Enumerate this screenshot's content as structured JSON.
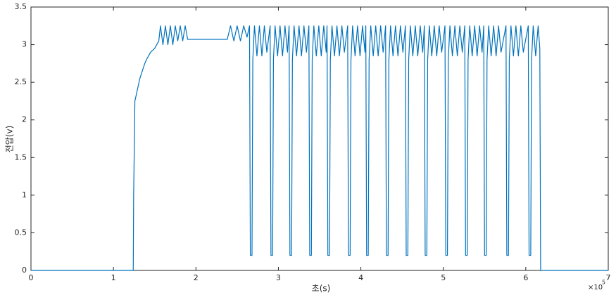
{
  "chart_data": {
    "type": "line",
    "x_label": "초(s)",
    "y_label": "전압(v)",
    "x_multiplier": "×10",
    "x_multiplier_exponent": "5",
    "xlim": [
      0,
      7
    ],
    "xticks": [
      0,
      1,
      2,
      3,
      4,
      5,
      6,
      7
    ],
    "ylim": [
      0,
      3.5
    ],
    "yticks": [
      0,
      0.5,
      1,
      1.5,
      2,
      2.5,
      3,
      3.5
    ],
    "grid": false,
    "series": [
      {
        "color": "#0072bd",
        "x": [
          0,
          1.24,
          1.245,
          1.26,
          1.27,
          1.3,
          1.32,
          1.35,
          1.38,
          1.4,
          1.45,
          1.5,
          1.55,
          1.57,
          1.6,
          1.63,
          1.66,
          1.69,
          1.72,
          1.75,
          1.78,
          1.81,
          1.84,
          1.87,
          1.9,
          2.38,
          2.42,
          2.46,
          2.5,
          2.54,
          2.58,
          2.62,
          2.65,
          2.66,
          2.68,
          2.69,
          2.71,
          2.74,
          2.77,
          2.8,
          2.83,
          2.86,
          2.9,
          2.91,
          2.93,
          2.94,
          2.96,
          2.99,
          3.02,
          3.05,
          3.08,
          3.11,
          3.13,
          3.14,
          3.16,
          3.17,
          3.19,
          3.22,
          3.25,
          3.28,
          3.31,
          3.34,
          3.37,
          3.38,
          3.4,
          3.41,
          3.43,
          3.46,
          3.49,
          3.52,
          3.55,
          3.58,
          3.59,
          3.6,
          3.62,
          3.63,
          3.65,
          3.68,
          3.71,
          3.74,
          3.77,
          3.8,
          3.84,
          3.85,
          3.87,
          3.88,
          3.9,
          3.93,
          3.96,
          3.99,
          4.02,
          4.05,
          4.06,
          4.07,
          4.09,
          4.1,
          4.12,
          4.15,
          4.18,
          4.21,
          4.24,
          4.27,
          4.3,
          4.31,
          4.33,
          4.34,
          4.36,
          4.39,
          4.42,
          4.45,
          4.48,
          4.51,
          4.54,
          4.55,
          4.57,
          4.58,
          4.6,
          4.63,
          4.66,
          4.69,
          4.72,
          4.75,
          4.77,
          4.78,
          4.8,
          4.81,
          4.83,
          4.86,
          4.89,
          4.92,
          4.95,
          4.98,
          5.02,
          5.03,
          5.05,
          5.06,
          5.08,
          5.11,
          5.14,
          5.17,
          5.2,
          5.23,
          5.26,
          5.27,
          5.29,
          5.3,
          5.32,
          5.35,
          5.38,
          5.41,
          5.44,
          5.47,
          5.49,
          5.5,
          5.52,
          5.53,
          5.55,
          5.58,
          5.61,
          5.64,
          5.67,
          5.7,
          5.76,
          5.77,
          5.79,
          5.8,
          5.82,
          5.85,
          5.88,
          5.91,
          5.94,
          5.97,
          6.03,
          6.04,
          6.06,
          6.07,
          6.09,
          6.12,
          6.15,
          6.17,
          6.18,
          7
        ],
        "values": [
          0,
          0,
          1.0,
          2.25,
          2.3,
          2.45,
          2.55,
          2.65,
          2.75,
          2.8,
          2.9,
          2.95,
          3.05,
          3.25,
          3.0,
          3.25,
          3.0,
          3.25,
          3.0,
          3.25,
          3.05,
          3.25,
          3.05,
          3.25,
          3.07,
          3.07,
          3.25,
          3.05,
          3.25,
          3.05,
          3.25,
          3.1,
          3.25,
          0.2,
          0.2,
          2.8,
          3.25,
          2.85,
          3.25,
          2.85,
          3.25,
          2.9,
          3.25,
          0.2,
          0.2,
          2.8,
          3.25,
          2.85,
          3.25,
          2.85,
          3.25,
          2.9,
          3.25,
          0.2,
          0.2,
          2.8,
          3.25,
          2.85,
          3.25,
          2.85,
          3.25,
          2.9,
          3.25,
          0.2,
          0.2,
          2.8,
          3.25,
          2.85,
          3.25,
          2.85,
          3.25,
          2.9,
          3.25,
          0.2,
          0.2,
          2.8,
          3.25,
          2.85,
          3.25,
          2.85,
          3.25,
          2.9,
          3.25,
          0.2,
          0.2,
          2.8,
          3.25,
          2.85,
          3.25,
          2.85,
          3.25,
          2.9,
          3.25,
          0.2,
          0.2,
          2.8,
          3.25,
          2.85,
          3.25,
          2.85,
          3.25,
          2.9,
          3.25,
          0.2,
          0.2,
          2.8,
          3.25,
          2.85,
          3.25,
          2.85,
          3.25,
          2.9,
          3.25,
          0.2,
          0.2,
          2.8,
          3.25,
          2.85,
          3.25,
          2.85,
          3.25,
          2.9,
          3.25,
          0.2,
          0.2,
          2.8,
          3.25,
          2.85,
          3.25,
          2.85,
          3.25,
          2.9,
          3.25,
          0.2,
          0.2,
          2.8,
          3.25,
          2.85,
          3.25,
          2.85,
          3.25,
          2.9,
          3.25,
          0.2,
          0.2,
          2.8,
          3.25,
          2.85,
          3.25,
          2.85,
          3.25,
          2.9,
          3.25,
          0.2,
          0.2,
          2.8,
          3.25,
          2.85,
          3.25,
          2.85,
          3.25,
          2.9,
          3.25,
          0.2,
          0.2,
          2.8,
          3.25,
          2.85,
          3.25,
          2.85,
          3.25,
          2.9,
          3.25,
          0.2,
          0.2,
          2.8,
          3.25,
          2.85,
          3.25,
          2.95,
          0,
          0
        ]
      }
    ]
  }
}
